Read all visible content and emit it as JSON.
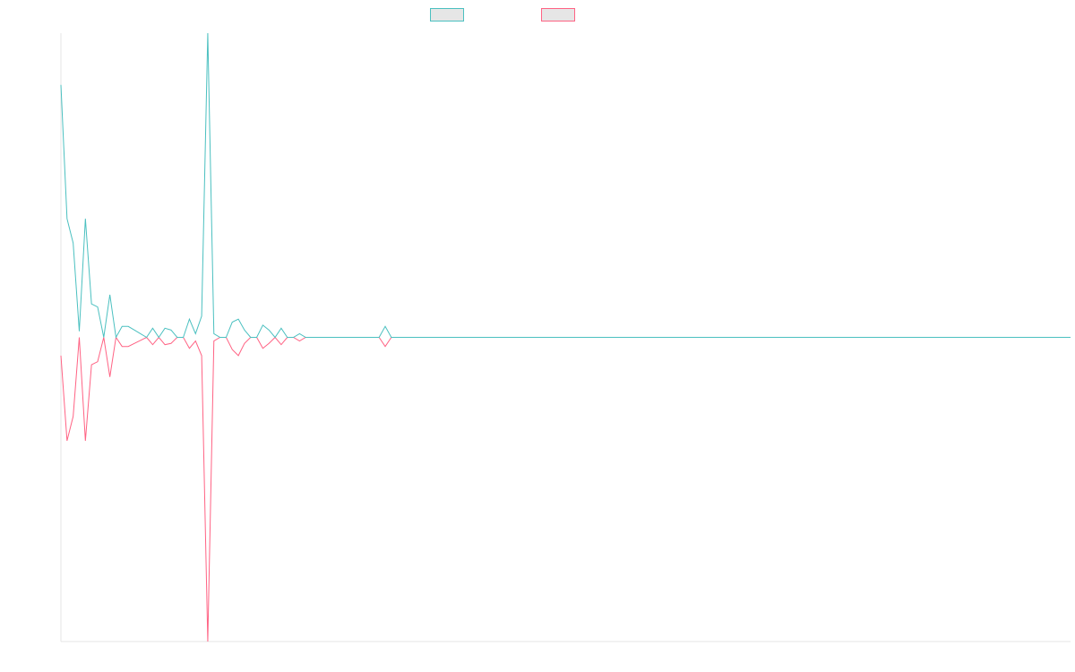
{
  "chart_data": {
    "type": "line",
    "title": "",
    "xlabel": "",
    "ylabel": "",
    "grid": false,
    "legend_position": "top-center",
    "x_range": [
      0,
      165
    ],
    "ylim": [
      -1.0,
      1.0
    ],
    "series": [
      {
        "color": "#4bc0c0",
        "values": [
          0.83,
          0.39,
          0.31,
          0.02,
          0.39,
          0.11,
          0.1,
          0.0,
          0.14,
          0.0,
          0.036,
          0.036,
          0.024,
          0.012,
          0.0,
          0.03,
          0.0,
          0.03,
          0.024,
          0.0,
          0.0,
          0.06,
          0.012,
          0.07,
          1.0,
          0.012,
          0.0,
          0.0,
          0.05,
          0.06,
          0.024,
          0.0,
          0.0,
          0.04,
          0.024,
          0.0,
          0.03,
          0.0,
          0.0,
          0.012,
          0.0,
          0.0,
          0.0,
          0.0,
          0.0,
          0.0,
          0.0,
          0.0,
          0.0,
          0.0,
          0.0,
          0.0,
          0.0,
          0.036,
          0.0,
          0.0,
          0.0,
          0.0,
          0.0,
          0.0,
          0.0,
          0.0,
          0.0,
          0.0,
          0.0,
          0.0,
          0.0,
          0.0,
          0.0,
          0.0,
          0.0,
          0.0,
          0.0,
          0.0,
          0.0,
          0.0,
          0.0,
          0.0,
          0.0,
          0.0,
          0.0,
          0.0,
          0.0,
          0.0,
          0.0,
          0.0,
          0.0,
          0.0,
          0.0,
          0.0,
          0.0,
          0.0,
          0.0,
          0.0,
          0.0,
          0.0,
          0.0,
          0.0,
          0.0,
          0.0,
          0.0,
          0.0,
          0.0,
          0.0,
          0.0,
          0.0,
          0.0,
          0.0,
          0.0,
          0.0,
          0.0,
          0.0,
          0.0,
          0.0,
          0.0,
          0.0,
          0.0,
          0.0,
          0.0,
          0.0,
          0.0,
          0.0,
          0.0,
          0.0,
          0.0,
          0.0,
          0.0,
          0.0,
          0.0,
          0.0,
          0.0,
          0.0,
          0.0,
          0.0,
          0.0,
          0.0,
          0.0,
          0.0,
          0.0,
          0.0,
          0.0,
          0.0,
          0.0,
          0.0,
          0.0,
          0.0,
          0.0,
          0.0,
          0.0,
          0.0,
          0.0,
          0.0,
          0.0,
          0.0,
          0.0,
          0.0,
          0.0,
          0.0,
          0.0,
          0.0,
          0.0,
          0.0,
          0.0,
          0.0,
          0.0,
          0.0
        ]
      },
      {
        "color": "#ff6384",
        "values": [
          -0.06,
          -0.34,
          -0.26,
          0.0,
          -0.34,
          -0.09,
          -0.08,
          0.0,
          -0.13,
          0.0,
          -0.03,
          -0.03,
          -0.02,
          -0.01,
          0.0,
          -0.024,
          0.0,
          -0.024,
          -0.02,
          0.0,
          0.0,
          -0.036,
          -0.012,
          -0.06,
          -1.0,
          -0.012,
          0.0,
          0.0,
          -0.04,
          -0.06,
          -0.02,
          0.0,
          0.0,
          -0.036,
          -0.02,
          0.0,
          -0.024,
          0.0,
          0.0,
          -0.012,
          0.0,
          0.0,
          0.0,
          0.0,
          0.0,
          0.0,
          0.0,
          0.0,
          0.0,
          0.0,
          0.0,
          0.0,
          0.0,
          -0.03,
          0.0,
          0.0,
          0.0,
          0.0,
          0.0,
          0.0,
          0.0,
          0.0,
          0.0,
          0.0,
          0.0,
          0.0,
          0.0,
          0.0,
          0.0,
          0.0,
          0.0,
          0.0,
          0.0,
          0.0,
          0.0,
          0.0,
          0.0,
          0.0,
          0.0,
          0.0,
          0.0,
          0.0,
          0.0,
          0.0,
          0.0,
          0.0,
          0.0,
          0.0,
          0.0,
          0.0,
          0.0,
          0.0,
          0.0,
          0.0,
          0.0,
          0.0,
          0.0,
          0.0,
          0.0,
          0.0,
          0.0,
          0.0,
          0.0,
          0.0,
          0.0,
          0.0,
          0.0,
          0.0,
          0.0,
          0.0,
          0.0,
          0.0,
          0.0,
          0.0,
          0.0,
          0.0,
          0.0,
          0.0,
          0.0,
          0.0,
          0.0,
          0.0,
          0.0,
          0.0,
          0.0,
          0.0,
          0.0,
          0.0,
          0.0,
          0.0,
          0.0,
          0.0,
          0.0,
          0.0,
          0.0,
          0.0,
          0.0,
          0.0,
          0.0,
          0.0,
          0.0,
          0.0,
          0.0,
          0.0,
          0.0,
          0.0,
          0.0,
          0.0,
          0.0,
          0.0,
          0.0,
          0.0,
          0.0,
          0.0,
          0.0,
          0.0,
          0.0,
          0.0,
          0.0,
          0.0,
          0.0,
          0.0,
          0.0,
          0.0,
          0.0,
          0.0
        ]
      }
    ]
  }
}
